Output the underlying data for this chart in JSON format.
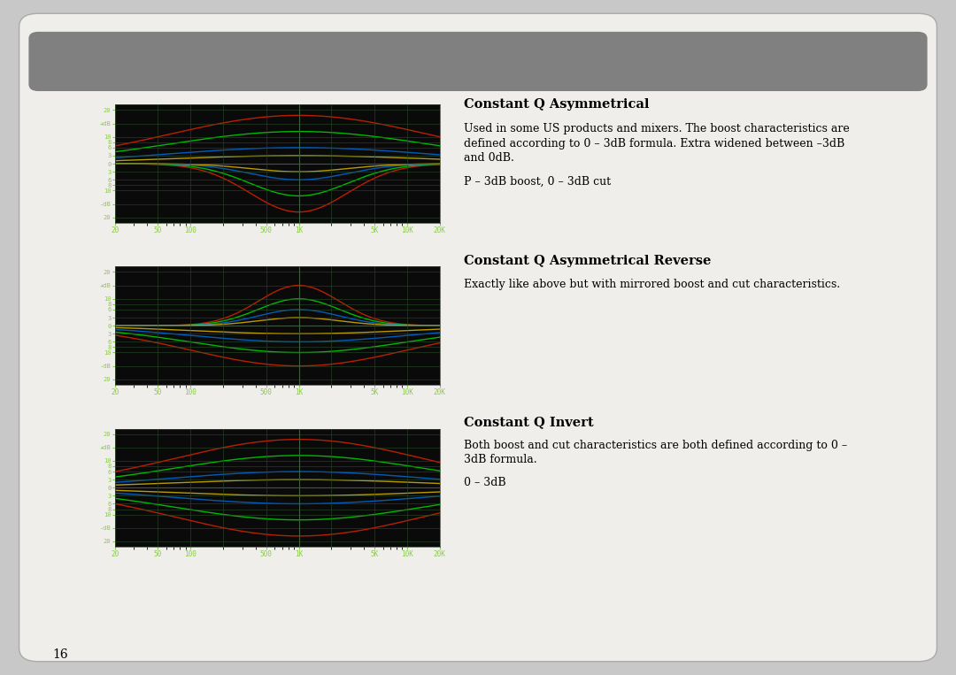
{
  "page_bg": "#c8c8c8",
  "card_bg": "#f0eeeb",
  "header_bg": "#808080",
  "chart_bg": "#0a0a0a",
  "grid_color": "#2a4a2a",
  "zero_line_color": "#888888",
  "title1": "Constant Q Asymmetrical",
  "desc1a": "Used in some US products and mixers. The boost characteristics are",
  "desc1b": "defined according to 0 – 3dB formula. Extra widened between –3dB",
  "desc1c": "and 0dB.",
  "desc1d": "P – 3dB boost, 0 – 3dB cut",
  "title2": "Constant Q Asymmetrical Reverse",
  "desc2": "Exactly like above but with mirrored boost and cut characteristics.",
  "title3": "Constant Q Invert",
  "desc3a": "Both boost and cut characteristics are both defined according to 0 –",
  "desc3b": "3dB formula.",
  "desc3d": "0 – 3dB",
  "line_colors": [
    "#cc2200",
    "#00cc00",
    "#0066cc",
    "#ccaa00"
  ],
  "page_number": "16"
}
